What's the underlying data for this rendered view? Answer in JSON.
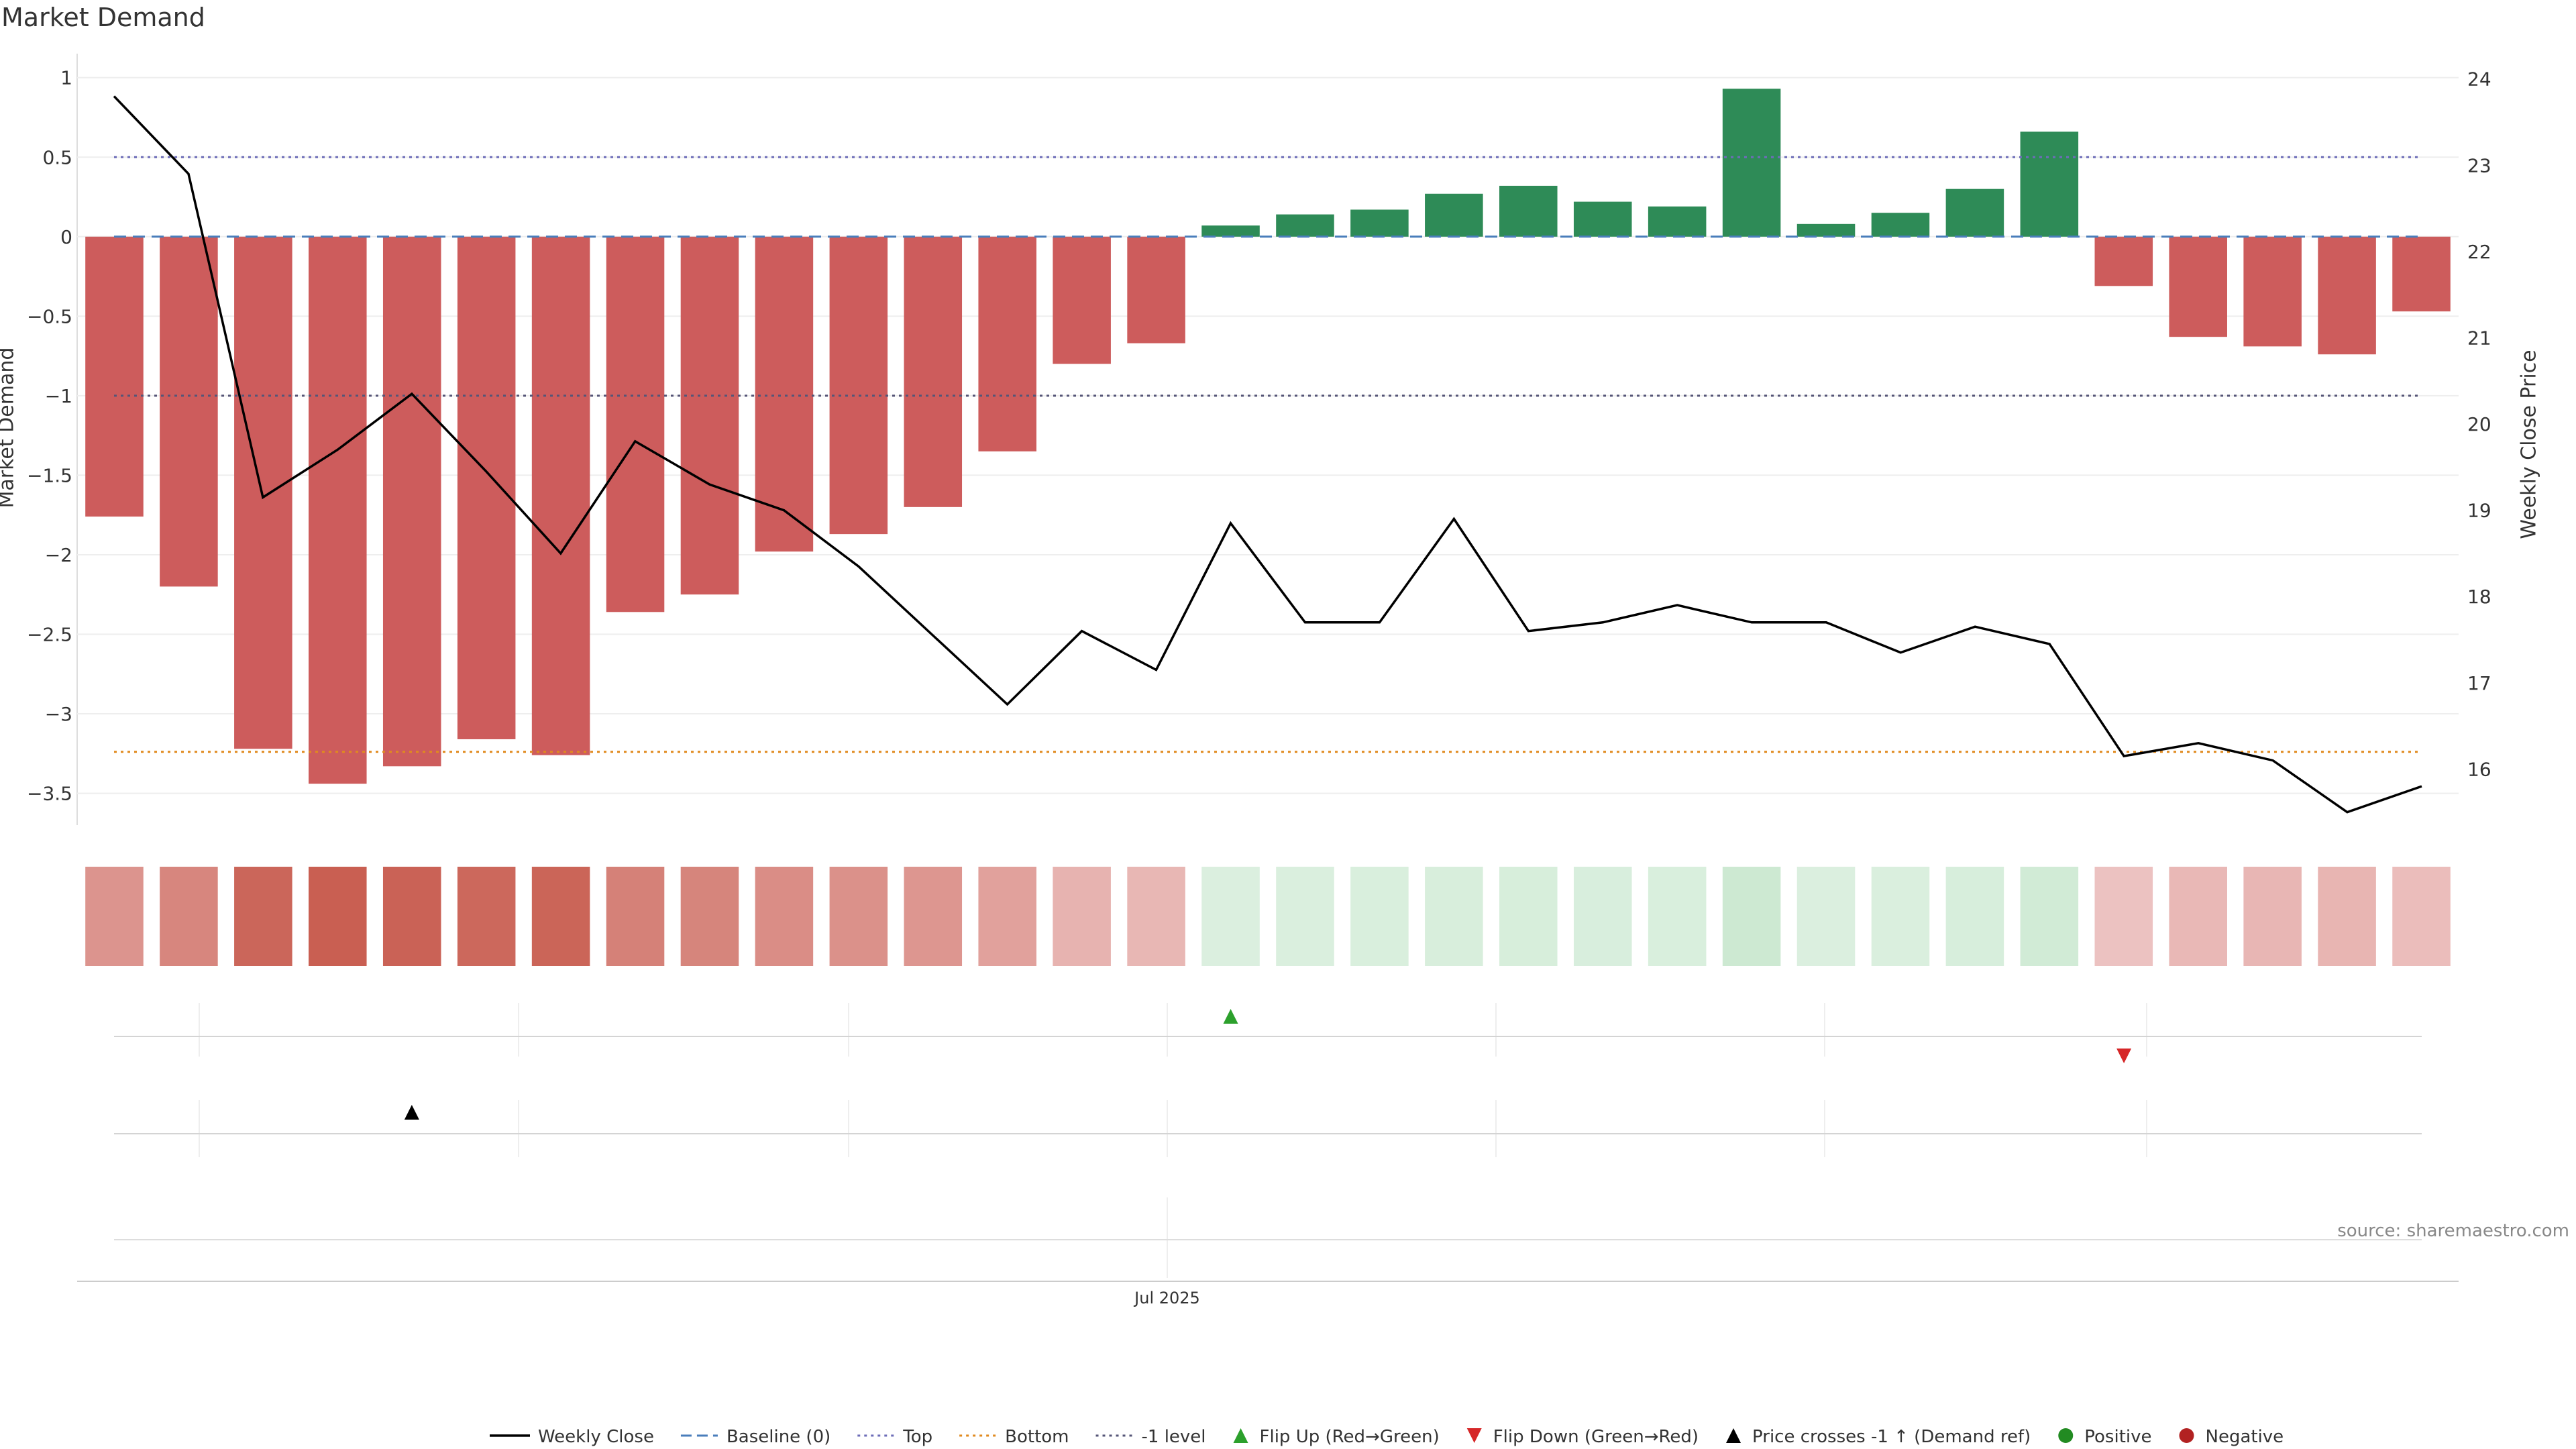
{
  "chart_data": {
    "type": "bar",
    "title": "Market Demand",
    "ylabel": "Market Demand",
    "y2label": "Weekly Close Price",
    "ylim": [
      -3.7,
      1.1
    ],
    "y2lim": [
      15.35,
      24.2
    ],
    "yticks": [
      "1",
      "0.5",
      "0",
      "−0.5",
      "−1",
      "−1.5",
      "−2",
      "−2.5",
      "−3",
      "−3.5"
    ],
    "y2ticks": [
      "24",
      "23",
      "22",
      "21",
      "20",
      "19",
      "18",
      "17",
      "16"
    ],
    "xtick_label": "Jul 2025",
    "series": [
      {
        "name": "Market Demand",
        "values": [
          -1.76,
          -2.2,
          -3.22,
          -3.44,
          -3.33,
          -3.16,
          -3.26,
          -2.36,
          -2.25,
          -1.98,
          -1.87,
          -1.7,
          -1.35,
          -0.8,
          -0.67,
          0.07,
          0.14,
          0.17,
          0.27,
          0.32,
          0.22,
          0.19,
          0.93,
          0.08,
          0.15,
          0.3,
          0.66,
          -0.31,
          -0.63,
          -0.69,
          -0.74,
          -0.47
        ]
      },
      {
        "name": "Weekly Close",
        "values": [
          23.8,
          22.9,
          19.15,
          19.7,
          20.35,
          19.45,
          18.5,
          19.8,
          19.3,
          19.0,
          18.35,
          17.55,
          16.75,
          17.6,
          17.15,
          18.85,
          17.7,
          17.7,
          18.9,
          17.6,
          17.7,
          17.9,
          17.7,
          17.7,
          17.35,
          17.65,
          17.45,
          16.15,
          16.3,
          16.1,
          15.5,
          15.8
        ]
      }
    ],
    "reference_lines": [
      {
        "name": "Baseline (0)",
        "value": 0,
        "color": "#4a7ebb"
      },
      {
        "name": "Top",
        "value": 0.5,
        "color": "#6d6db8"
      },
      {
        "name": "Bottom",
        "value": 16.2,
        "axis": "y2",
        "color": "#e08a1e"
      },
      {
        "name": "-1 level",
        "value": -1,
        "color": "#555577"
      }
    ],
    "events": {
      "flip_up_index": 15,
      "flip_down_index": 27,
      "price_cross_index": 4
    },
    "colors": {
      "positive": "#2e8b57",
      "negative": "#cd5c5c",
      "price": "#000000",
      "flip_up": "#2ca02c",
      "flip_down": "#d62728"
    },
    "legend_position": "bottom",
    "legend": [
      {
        "label": "Weekly Close",
        "kind": "line",
        "color": "#000000"
      },
      {
        "label": "Baseline (0)",
        "kind": "dash",
        "color": "#4a7ebb"
      },
      {
        "label": "Top",
        "kind": "dot",
        "color": "#6d6db8"
      },
      {
        "label": "Bottom",
        "kind": "dot",
        "color": "#e08a1e"
      },
      {
        "label": "-1 level",
        "kind": "dot",
        "color": "#555577"
      },
      {
        "label": "Flip Up (Red→Green)",
        "kind": "tri-up",
        "color": "#2ca02c"
      },
      {
        "label": "Flip Down (Green→Red)",
        "kind": "tri-down",
        "color": "#d62728"
      },
      {
        "label": "Price crosses -1 ↑ (Demand ref)",
        "kind": "tri-up",
        "color": "#000000"
      },
      {
        "label": "Positive",
        "kind": "circle",
        "color": "#228b22"
      },
      {
        "label": "Negative",
        "kind": "circle",
        "color": "#b22222"
      }
    ]
  },
  "source": "source: sharemaestro.com"
}
